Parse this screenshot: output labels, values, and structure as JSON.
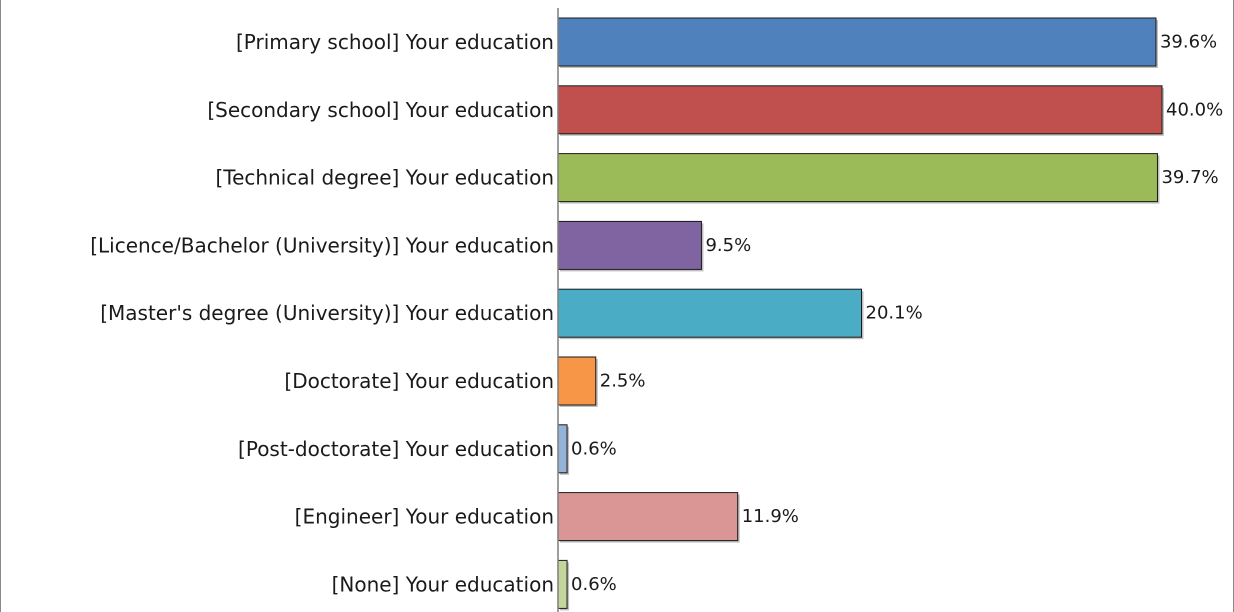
{
  "chart_data": {
    "type": "bar",
    "orientation": "horizontal",
    "categories": [
      "[Primary school] Your education",
      "[Secondary school] Your education",
      "[Technical degree] Your education",
      "[Licence/Bachelor (University)] Your education",
      "[Master's degree (University)] Your education",
      "[Doctorate] Your education",
      "[Post-doctorate] Your education",
      "[Engineer] Your education",
      "[None] Your education"
    ],
    "values": [
      39.6,
      40.0,
      39.7,
      9.5,
      20.1,
      2.5,
      0.6,
      11.9,
      0.6
    ],
    "value_labels": [
      "39.6%",
      "40.0%",
      "39.7%",
      "9.5%",
      "20.1%",
      "2.5%",
      "0.6%",
      "11.9%",
      "0.6%"
    ],
    "unit": "%",
    "colors": [
      "#4f81bd",
      "#c0504d",
      "#9bbb59",
      "#8064a2",
      "#4bacc6",
      "#f79646",
      "#95b3d7",
      "#d99694",
      "#c3d69b"
    ],
    "xlim": [
      0,
      40
    ],
    "grid": false,
    "legend": "none"
  }
}
